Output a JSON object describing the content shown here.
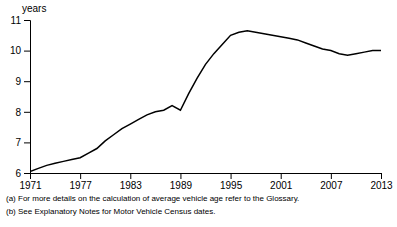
{
  "chart_data": {
    "type": "line",
    "x": [
      1971,
      1972,
      1973,
      1974,
      1975,
      1976,
      1977,
      1978,
      1979,
      1980,
      1981,
      1982,
      1983,
      1984,
      1985,
      1986,
      1987,
      1988,
      1989,
      1990,
      1991,
      1992,
      1993,
      1994,
      1995,
      1996,
      1997,
      1998,
      1999,
      2000,
      2001,
      2002,
      2003,
      2004,
      2005,
      2006,
      2007,
      2008,
      2009,
      2010,
      2011,
      2012,
      2013
    ],
    "values": [
      6.05,
      6.15,
      6.25,
      6.32,
      6.38,
      6.44,
      6.5,
      6.65,
      6.8,
      7.05,
      7.25,
      7.45,
      7.6,
      7.75,
      7.9,
      8.0,
      8.05,
      8.2,
      8.05,
      8.6,
      9.1,
      9.55,
      9.9,
      10.2,
      10.5,
      10.6,
      10.65,
      10.6,
      10.55,
      10.5,
      10.45,
      10.4,
      10.35,
      10.25,
      10.15,
      10.05,
      10.0,
      9.9,
      9.85,
      9.9,
      9.95,
      10.0,
      10.0
    ],
    "color": "#000000",
    "xlim": [
      1971,
      2013
    ],
    "ylim": [
      6,
      11
    ],
    "xticks": [
      1971,
      1977,
      1983,
      1989,
      1995,
      2001,
      2007,
      2013
    ],
    "yticks": [
      6,
      7,
      8,
      9,
      10,
      11
    ],
    "ylabel": "years",
    "annotations": [
      "(a) For more details on the calculation of average vehicle age refer to the Glossary.",
      "(b) See Explanatory Notes for Motor Vehicle Census dates."
    ],
    "grid": false
  }
}
